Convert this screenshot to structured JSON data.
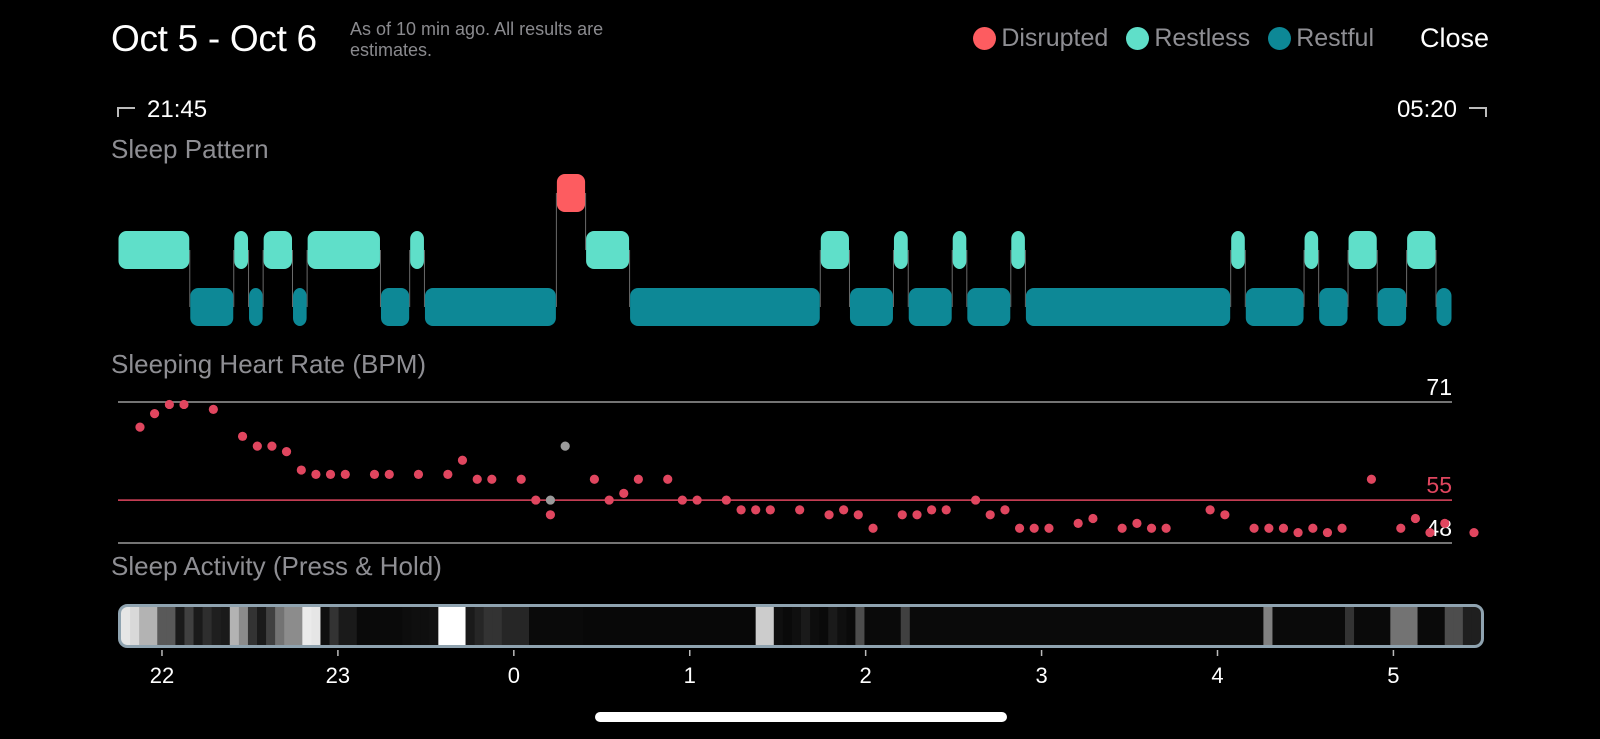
{
  "header": {
    "title": "Oct 5 - Oct 6",
    "subtitle": "As of 10 min ago. All results are estimates.",
    "close_label": "Close"
  },
  "legend": [
    {
      "label": "Disrupted",
      "color": "#fd5c60"
    },
    {
      "label": "Restless",
      "color": "#5fdfc9"
    },
    {
      "label": "Restful",
      "color": "#0d8896"
    }
  ],
  "time_range": {
    "start": "21:45",
    "end": "05:20"
  },
  "sections": {
    "sleep_pattern": "Sleep Pattern",
    "heart_rate": "Sleeping Heart Rate (BPM)",
    "activity": "Sleep Activity (Press & Hold)"
  },
  "chart_data": [
    {
      "type": "timeline",
      "title": "Sleep Pattern",
      "x_unit": "hours since midnight",
      "xlim": [
        -2.25,
        5.333
      ],
      "levels": [
        "Disrupted",
        "Restless",
        "Restful"
      ],
      "segments": [
        {
          "start": -2.25,
          "end": -1.842,
          "state": "Restless"
        },
        {
          "start": -1.842,
          "end": -1.592,
          "state": "Restful"
        },
        {
          "start": -1.592,
          "end": -1.508,
          "state": "Restless"
        },
        {
          "start": -1.508,
          "end": -1.425,
          "state": "Restful"
        },
        {
          "start": -1.425,
          "end": -1.258,
          "state": "Restless"
        },
        {
          "start": -1.258,
          "end": -1.175,
          "state": "Restful"
        },
        {
          "start": -1.175,
          "end": -0.758,
          "state": "Restless"
        },
        {
          "start": -0.758,
          "end": -0.592,
          "state": "Restful"
        },
        {
          "start": -0.592,
          "end": -0.508,
          "state": "Restless"
        },
        {
          "start": -0.508,
          "end": 0.242,
          "state": "Restful"
        },
        {
          "start": 0.242,
          "end": 0.408,
          "state": "Disrupted"
        },
        {
          "start": 0.408,
          "end": 0.658,
          "state": "Restless"
        },
        {
          "start": 0.658,
          "end": 1.742,
          "state": "Restful"
        },
        {
          "start": 1.742,
          "end": 1.908,
          "state": "Restless"
        },
        {
          "start": 1.908,
          "end": 2.158,
          "state": "Restful"
        },
        {
          "start": 2.158,
          "end": 2.242,
          "state": "Restless"
        },
        {
          "start": 2.242,
          "end": 2.492,
          "state": "Restful"
        },
        {
          "start": 2.492,
          "end": 2.575,
          "state": "Restless"
        },
        {
          "start": 2.575,
          "end": 2.825,
          "state": "Restful"
        },
        {
          "start": 2.825,
          "end": 2.908,
          "state": "Restless"
        },
        {
          "start": 2.908,
          "end": 4.075,
          "state": "Restful"
        },
        {
          "start": 4.075,
          "end": 4.158,
          "state": "Restless"
        },
        {
          "start": 4.158,
          "end": 4.492,
          "state": "Restful"
        },
        {
          "start": 4.492,
          "end": 4.575,
          "state": "Restless"
        },
        {
          "start": 4.575,
          "end": 4.742,
          "state": "Restful"
        },
        {
          "start": 4.742,
          "end": 4.908,
          "state": "Restless"
        },
        {
          "start": 4.908,
          "end": 5.075,
          "state": "Restful"
        },
        {
          "start": 5.075,
          "end": 5.242,
          "state": "Restless"
        },
        {
          "start": 5.242,
          "end": 5.333,
          "state": "Restful"
        }
      ]
    },
    {
      "type": "scatter",
      "title": "Sleeping Heart Rate (BPM)",
      "xlim": [
        -2.25,
        5.333
      ],
      "ylim": [
        48,
        71
      ],
      "reference_lines": [
        {
          "value": 71,
          "label": "71",
          "color": "#9a9a9a",
          "label_color": "#ffffff"
        },
        {
          "value": 55,
          "label": "55",
          "color": "#e0465f",
          "label_color": "#e0465f"
        },
        {
          "value": 48,
          "label": "48",
          "color": "#9a9a9a",
          "label_color": "#ffffff"
        }
      ],
      "series": [
        {
          "name": "heart rate",
          "color": "#e0465f",
          "points": [
            [
              -2.125,
              66.9
            ],
            [
              -2.042,
              69.1
            ],
            [
              -1.958,
              70.6
            ],
            [
              -1.875,
              70.6
            ],
            [
              -1.708,
              69.8
            ],
            [
              -1.542,
              65.4
            ],
            [
              -1.458,
              63.8
            ],
            [
              -1.375,
              63.8
            ],
            [
              -1.292,
              62.9
            ],
            [
              -1.208,
              59.9
            ],
            [
              -1.125,
              59.2
            ],
            [
              -1.042,
              59.2
            ],
            [
              -0.958,
              59.2
            ],
            [
              -0.792,
              59.2
            ],
            [
              -0.708,
              59.2
            ],
            [
              -0.542,
              59.2
            ],
            [
              -0.375,
              59.2
            ],
            [
              -0.292,
              61.5
            ],
            [
              -0.208,
              58.4
            ],
            [
              -0.125,
              58.4
            ],
            [
              0.042,
              58.4
            ],
            [
              0.125,
              55.0
            ],
            [
              0.208,
              52.6
            ],
            [
              0.458,
              58.4
            ],
            [
              0.542,
              55.0
            ],
            [
              0.625,
              56.1
            ],
            [
              0.708,
              58.4
            ],
            [
              0.875,
              58.4
            ],
            [
              0.958,
              55.0
            ],
            [
              1.042,
              55.0
            ],
            [
              1.208,
              55.0
            ],
            [
              1.292,
              53.4
            ],
            [
              1.375,
              53.4
            ],
            [
              1.458,
              53.4
            ],
            [
              1.625,
              53.4
            ],
            [
              1.792,
              52.6
            ],
            [
              1.875,
              53.4
            ],
            [
              1.958,
              52.6
            ],
            [
              2.042,
              50.4
            ],
            [
              2.208,
              52.6
            ],
            [
              2.292,
              52.6
            ],
            [
              2.375,
              53.4
            ],
            [
              2.458,
              53.4
            ],
            [
              2.625,
              55.0
            ],
            [
              2.708,
              52.6
            ],
            [
              2.792,
              53.4
            ],
            [
              2.875,
              50.4
            ],
            [
              2.958,
              50.4
            ],
            [
              3.042,
              50.4
            ],
            [
              3.208,
              51.2
            ],
            [
              3.292,
              52.0
            ],
            [
              3.458,
              50.4
            ],
            [
              3.542,
              51.2
            ],
            [
              3.625,
              50.4
            ],
            [
              3.708,
              50.4
            ],
            [
              3.958,
              53.4
            ],
            [
              4.042,
              52.6
            ],
            [
              4.208,
              50.4
            ],
            [
              4.292,
              50.4
            ],
            [
              4.375,
              50.4
            ],
            [
              4.458,
              49.7
            ],
            [
              4.542,
              50.4
            ],
            [
              4.625,
              49.7
            ],
            [
              4.708,
              50.4
            ],
            [
              4.875,
              58.4
            ],
            [
              5.042,
              50.4
            ],
            [
              5.125,
              52.0
            ],
            [
              5.208,
              49.7
            ],
            [
              5.292,
              51.2
            ],
            [
              5.458,
              49.7
            ]
          ]
        },
        {
          "name": "unverified",
          "color": "#9a9a9a",
          "points": [
            [
              0.292,
              63.8
            ],
            [
              0.208,
              55.0
            ]
          ]
        }
      ]
    },
    {
      "type": "heatmap",
      "title": "Sleep Activity (Press & Hold)",
      "xlim": [
        -2.25,
        5.333
      ],
      "x_ticks": [
        22,
        23,
        0,
        1,
        2,
        3,
        4,
        5
      ],
      "tick_positions": [
        -2,
        -1,
        0,
        1,
        2,
        3,
        4,
        5
      ],
      "bin_width_hours": 0.0833,
      "values": [
        0.9,
        0.85,
        0.7,
        0.7,
        0.35,
        0.35,
        0.1,
        0.25,
        0.1,
        0.18,
        0.12,
        0.1,
        0.7,
        0.55,
        0.2,
        0.1,
        0.25,
        0.45,
        0.55,
        0.55,
        0.92,
        0.9,
        0.06,
        0.2,
        0.1,
        0.1,
        0.04,
        0.04,
        0.04,
        0.04,
        0.04,
        0.05,
        0.06,
        0.06,
        0.07,
        1.0,
        1.0,
        1.0,
        0.1,
        0.15,
        0.2,
        0.2,
        0.15,
        0.15,
        0.15,
        0.04,
        0.04,
        0.04,
        0.04,
        0.04,
        0.04,
        0.03,
        0.03,
        0.03,
        0.03,
        0.03,
        0.03,
        0.03,
        0.03,
        0.03,
        0.03,
        0.03,
        0.03,
        0.03,
        0.03,
        0.03,
        0.03,
        0.03,
        0.03,
        0.03,
        0.8,
        0.8,
        0.06,
        0.04,
        0.06,
        0.1,
        0.05,
        0.04,
        0.1,
        0.06,
        0.04,
        0.3,
        0.04,
        0.04,
        0.04,
        0.04,
        0.25,
        0.04,
        0.04,
        0.04,
        0.04,
        0.04,
        0.04,
        0.04,
        0.04,
        0.04,
        0.04,
        0.04,
        0.04,
        0.04,
        0.04,
        0.04,
        0.04,
        0.04,
        0.04,
        0.04,
        0.04,
        0.04,
        0.04,
        0.04,
        0.04,
        0.04,
        0.04,
        0.04,
        0.04,
        0.04,
        0.04,
        0.04,
        0.04,
        0.04,
        0.04,
        0.04,
        0.04,
        0.04,
        0.04,
        0.04,
        0.5,
        0.04,
        0.04,
        0.04,
        0.04,
        0.04,
        0.04,
        0.04,
        0.04,
        0.2,
        0.04,
        0.04,
        0.04,
        0.04,
        0.45,
        0.45,
        0.45,
        0.04,
        0.04,
        0.04,
        0.3,
        0.3,
        0.12,
        0.12
      ]
    }
  ]
}
